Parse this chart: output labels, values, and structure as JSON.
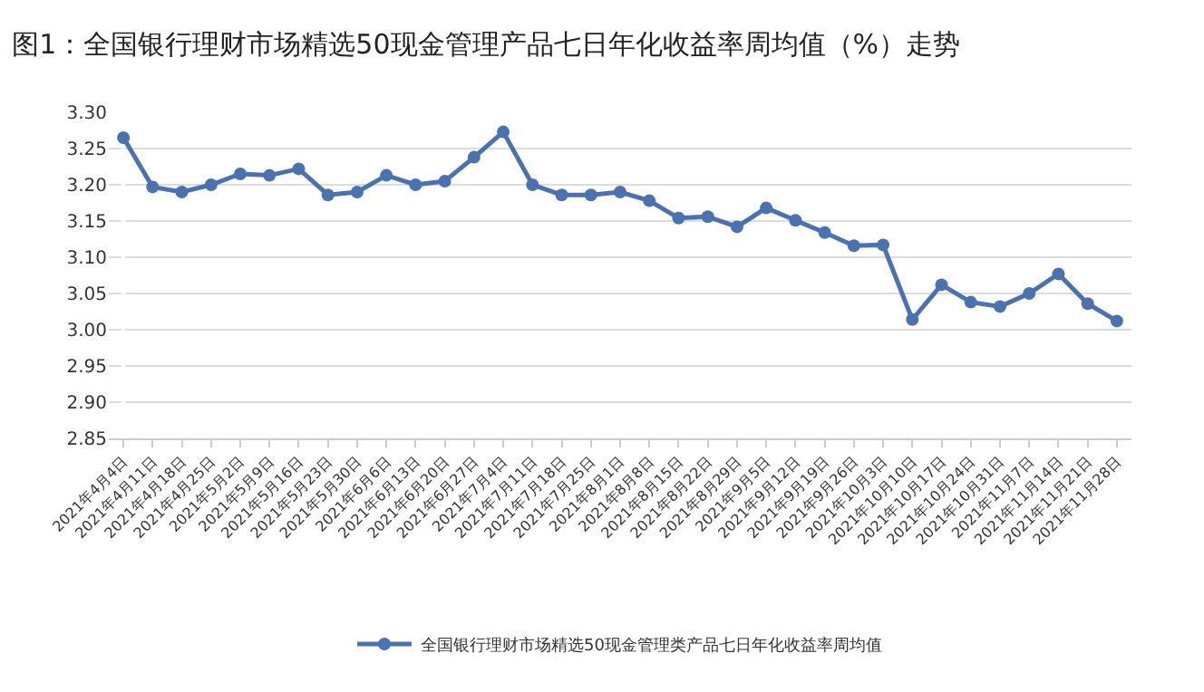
{
  "chart_data": {
    "type": "line",
    "title": "图1：全国银行理财市场精选50现金管理产品七日年化收益率周均值（%）走势",
    "categories": [
      "2021年4月4日",
      "2021年4月11日",
      "2021年4月18日",
      "2021年4月25日",
      "2021年5月2日",
      "2021年5月9日",
      "2021年5月16日",
      "2021年5月23日",
      "2021年5月30日",
      "2021年6月6日",
      "2021年6月13日",
      "2021年6月20日",
      "2021年6月27日",
      "2021年7月4日",
      "2021年7月11日",
      "2021年7月18日",
      "2021年7月25日",
      "2021年8月1日",
      "2021年8月8日",
      "2021年8月15日",
      "2021年8月22日",
      "2021年8月29日",
      "2021年9月5日",
      "2021年9月12日",
      "2021年9月19日",
      "2021年9月26日",
      "2021年10月3日",
      "2021年10月10日",
      "2021年10月17日",
      "2021年10月24日",
      "2021年10月31日",
      "2021年11月7日",
      "2021年11月14日",
      "2021年11月21日",
      "2021年11月28日"
    ],
    "series": [
      {
        "name": "全国银行理财市场精选50现金管理类产品七日年化收益率周均值",
        "color": "#4a72b0",
        "values": [
          3.265,
          3.197,
          3.19,
          3.2,
          3.215,
          3.213,
          3.222,
          3.186,
          3.19,
          3.213,
          3.2,
          3.205,
          3.238,
          3.273,
          3.2,
          3.186,
          3.186,
          3.19,
          3.178,
          3.154,
          3.156,
          3.142,
          3.168,
          3.151,
          3.134,
          3.116,
          3.117,
          3.014,
          3.062,
          3.038,
          3.032,
          3.05,
          3.077,
          3.036,
          3.012
        ]
      }
    ],
    "ylim": [
      2.85,
      3.3
    ],
    "yticks": [
      {
        "value": 2.85,
        "label": "2.85"
      },
      {
        "value": 2.9,
        "label": "2.90"
      },
      {
        "value": 2.95,
        "label": "2.95"
      },
      {
        "value": 3.0,
        "label": "3.00"
      },
      {
        "value": 3.05,
        "label": "3.05"
      },
      {
        "value": 3.1,
        "label": "3.10"
      },
      {
        "value": 3.15,
        "label": "3.15"
      },
      {
        "value": 3.2,
        "label": "3.20"
      },
      {
        "value": 3.25,
        "label": "3.25"
      },
      {
        "value": 3.3,
        "label": "3.30"
      }
    ],
    "grid": "y",
    "legend": "bottom",
    "marker": "circle",
    "line_style": "solid"
  }
}
